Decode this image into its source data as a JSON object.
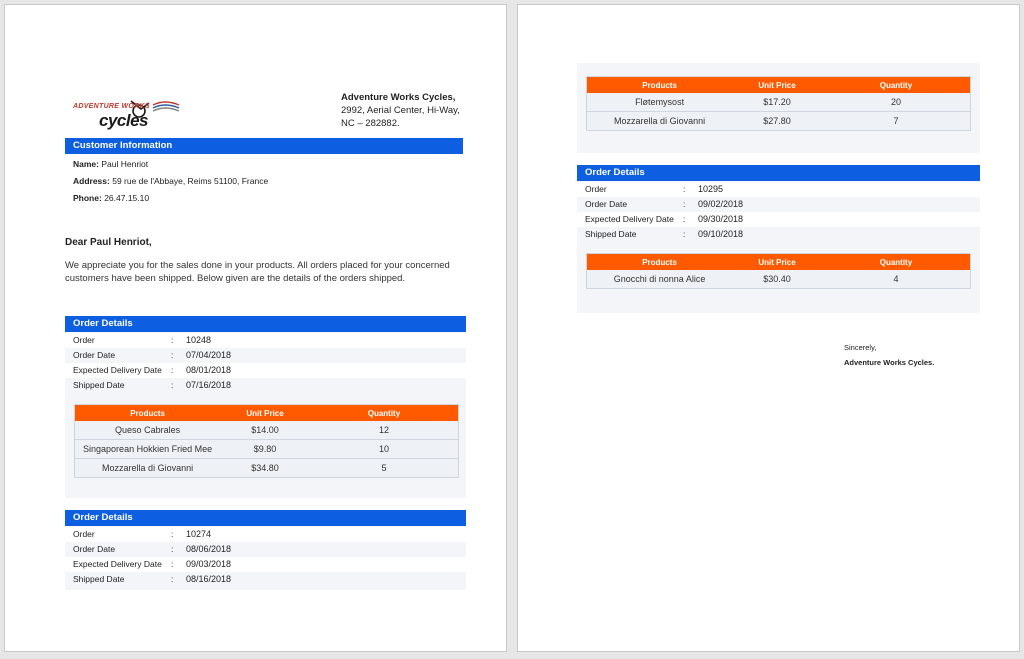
{
  "company": {
    "logo_top": "ADVENTURE WORKS",
    "logo_main": "cycles",
    "name": "Adventure Works Cycles,",
    "address_line1": "2992, Aerial Center, Hi-Way,",
    "address_line2": "NC – 282882."
  },
  "customer": {
    "section_title": "Customer Information",
    "name_label": "Name:",
    "name": "Paul Henriot",
    "address_label": "Address:",
    "address": "59 rue de l'Abbaye, Reims 51100, France",
    "phone_label": "Phone:",
    "phone": "26.47.15.10"
  },
  "letter": {
    "greeting": "Dear Paul Henriot,",
    "body": "We appreciate you for the sales done in your products. All orders placed for your concerned customers have been shipped. Below given are the details of the orders shipped."
  },
  "labels": {
    "order_details": "Order Details",
    "order": "Order",
    "order_date": "Order Date",
    "expected_delivery": "Expected Delivery Date",
    "shipped_date": "Shipped Date",
    "colon": ":",
    "col_products": "Products",
    "col_unit_price": "Unit Price",
    "col_quantity": "Quantity"
  },
  "orders": [
    {
      "order": "10248",
      "order_date": "07/04/2018",
      "expected_delivery": "08/01/2018",
      "shipped_date": "07/16/2018",
      "items": [
        {
          "product": "Queso Cabrales",
          "price": "$14.00",
          "qty": "12"
        },
        {
          "product": "Singaporean Hokkien Fried Mee",
          "price": "$9.80",
          "qty": "10"
        },
        {
          "product": "Mozzarella di Giovanni",
          "price": "$34.80",
          "qty": "5"
        }
      ]
    },
    {
      "order": "10274",
      "order_date": "08/06/2018",
      "expected_delivery": "09/03/2018",
      "shipped_date": "08/16/2018",
      "items": [
        {
          "product": "Fløtemysost",
          "price": "$17.20",
          "qty": "20"
        },
        {
          "product": "Mozzarella di Giovanni",
          "price": "$27.80",
          "qty": "7"
        }
      ]
    },
    {
      "order": "10295",
      "order_date": "09/02/2018",
      "expected_delivery": "09/30/2018",
      "shipped_date": "09/10/2018",
      "items": [
        {
          "product": "Gnocchi di nonna Alice",
          "price": "$30.40",
          "qty": "4"
        }
      ]
    }
  ],
  "closing": {
    "sincerely": "Sincerely,",
    "signature": "Adventure Works Cycles."
  },
  "colors": {
    "header_blue": "#0d5ee0",
    "table_orange": "#ff5a00"
  }
}
